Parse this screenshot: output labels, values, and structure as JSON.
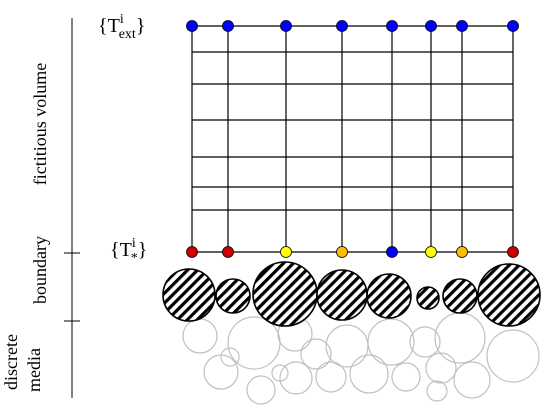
{
  "side_labels": {
    "fictitious": "fictitious volume",
    "boundary": "boundary",
    "discrete_1": "discrete",
    "discrete_2": "media"
  },
  "top_label": {
    "open": "{T",
    "sup": "i",
    "sub": "ext",
    "close": "}"
  },
  "bottom_label": {
    "open": "{T",
    "sup": "i",
    "sub": "*",
    "close": "}"
  },
  "colors": {
    "blue": "#0000ff",
    "red": "#cc0000",
    "yellow": "#ffff00",
    "orange": "#ffbf00",
    "grid": "#000000",
    "media_outline": "#c0c0c0"
  },
  "top_node_colors": [
    "blue",
    "blue",
    "blue",
    "blue",
    "blue",
    "blue",
    "blue",
    "blue"
  ],
  "bottom_node_colors": [
    "red",
    "red",
    "yellow",
    "orange",
    "blue",
    "yellow",
    "orange",
    "red"
  ]
}
